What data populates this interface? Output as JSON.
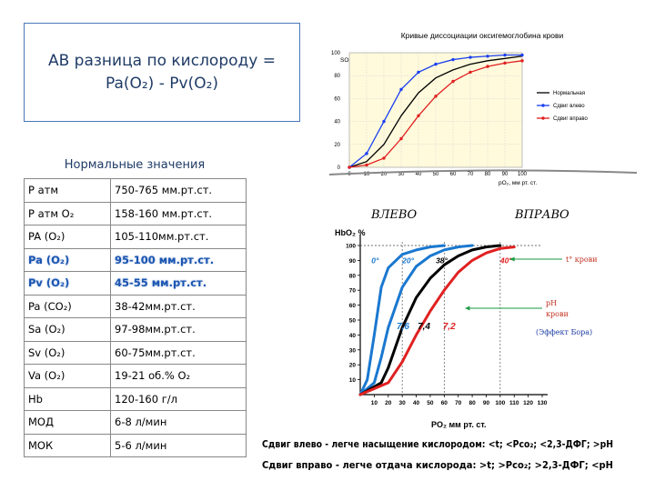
{
  "slide": {
    "title_line1": "АВ разница по кислороду =",
    "title_line2": "Pa(O₂) - Pv(O₂)"
  },
  "normals": {
    "heading": "Нормальные значения",
    "rows": [
      {
        "param": "P атм",
        "value": "750-765  мм.рт.ст.",
        "highlight": false
      },
      {
        "param": "P атм O₂",
        "value": "158-160 мм.рт.ст.",
        "highlight": false
      },
      {
        "param": "PA (O₂)",
        "value": "105-110мм.рт.ст.",
        "highlight": false
      },
      {
        "param": "Pa (O₂)",
        "value": "95-100 мм.рт.ст.",
        "highlight": true
      },
      {
        "param": "Pv (O₂)",
        "value": "45-55 мм.рт.ст.",
        "highlight": true
      },
      {
        "param": "Pa (CO₂)",
        "value": "38-42мм.рт.ст.",
        "highlight": false
      },
      {
        "param": "Sa (O₂)",
        "value": "97-98мм.рт.ст.",
        "highlight": false
      },
      {
        "param": "Sv (O₂)",
        "value": "60-75мм.рт.ст.",
        "highlight": false
      },
      {
        "param": "Va (O₂)",
        "value": "19-21 об.% O₂",
        "highlight": false
      },
      {
        "param": "Hb",
        "value": "120-160 г/л",
        "highlight": false
      },
      {
        "param": "МОД",
        "value": "6-8 л/мин",
        "highlight": false
      },
      {
        "param": "МОК",
        "value": "5-6 л/мин",
        "highlight": false
      }
    ]
  },
  "chart_data": [
    {
      "type": "line",
      "title": "Кривые диссоциации оксигемоглобина крови",
      "xlabel": "pO₂, мм рт. ст.",
      "ylabel": "SO₂, %",
      "xlim": [
        0,
        100
      ],
      "ylim": [
        0,
        100
      ],
      "x_ticks": [
        "0",
        "10",
        "20",
        "30",
        "40",
        "50",
        "60",
        "70",
        "80",
        "90",
        "100"
      ],
      "y_ticks": [
        "0",
        "20",
        "40",
        "60",
        "80",
        "100"
      ],
      "grid": true,
      "background": "#fffadc",
      "legend_position": "right",
      "series": [
        {
          "name": "Нормальная",
          "color": "#000000",
          "x": [
            0,
            10,
            20,
            30,
            40,
            50,
            60,
            70,
            80,
            90,
            100
          ],
          "y": [
            0,
            5,
            20,
            45,
            65,
            78,
            85,
            90,
            93,
            95,
            97
          ]
        },
        {
          "name": "Сдвиг влево",
          "color": "#1a3ff0",
          "x": [
            0,
            10,
            20,
            30,
            40,
            50,
            60,
            70,
            80,
            90,
            100
          ],
          "y": [
            0,
            12,
            40,
            68,
            83,
            90,
            94,
            96,
            97,
            98,
            98
          ]
        },
        {
          "name": "Сдвиг вправо",
          "color": "#e02020",
          "x": [
            0,
            10,
            20,
            30,
            40,
            50,
            60,
            70,
            80,
            90,
            100
          ],
          "y": [
            0,
            2,
            8,
            25,
            45,
            62,
            75,
            83,
            88,
            91,
            93
          ]
        }
      ]
    },
    {
      "type": "line",
      "xlabel": "PO₂  мм рт. ст.",
      "ylabel": "HbO₂  %",
      "xlim": [
        0,
        130
      ],
      "ylim": [
        0,
        100
      ],
      "x_ticks": [
        "10",
        "20",
        "30",
        "40",
        "50",
        "60",
        "70",
        "80",
        "90",
        "100",
        "110",
        "120",
        "130"
      ],
      "y_ticks": [
        "10",
        "20",
        "30",
        "40",
        "50",
        "60",
        "70",
        "80",
        "90",
        "100"
      ],
      "grid": false,
      "heading_left": "ВЛЕВО",
      "heading_right": "ВПРАВО",
      "series": [
        {
          "name": "",
          "color": "#1a78d0",
          "x": [
            0,
            5,
            10,
            15,
            20,
            30,
            40,
            50,
            60
          ],
          "y": [
            0,
            10,
            40,
            72,
            85,
            94,
            97,
            99,
            100
          ]
        },
        {
          "name": "",
          "color": "#1a78d0",
          "x": [
            0,
            10,
            15,
            20,
            30,
            40,
            50,
            60,
            70,
            80
          ],
          "y": [
            0,
            8,
            25,
            45,
            72,
            86,
            93,
            97,
            99,
            100
          ]
        },
        {
          "name": "",
          "color": "#000000",
          "x": [
            0,
            15,
            20,
            30,
            40,
            50,
            60,
            70,
            80,
            90,
            100
          ],
          "y": [
            0,
            8,
            18,
            45,
            65,
            78,
            87,
            93,
            97,
            99,
            100
          ]
        },
        {
          "name": "",
          "color": "#e02020",
          "x": [
            0,
            20,
            30,
            40,
            50,
            60,
            70,
            80,
            90,
            100,
            110
          ],
          "y": [
            0,
            8,
            22,
            40,
            56,
            70,
            82,
            90,
            95,
            98,
            99
          ]
        }
      ],
      "annotations": {
        "temps": [
          "0°",
          "20°",
          "38°",
          "40°"
        ],
        "ph": [
          "7,6",
          "7,4",
          "7,2"
        ],
        "temp_label": "t° крови",
        "ph_label_1": "pH",
        "ph_label_2": "крови",
        "bohr": "(Эффект Бора)"
      }
    }
  ],
  "footer": {
    "line1": "Сдвиг влево - легче насыщение кислородом: <t; <Pco₂; <2,3-ДФГ; >pH",
    "line2": "Сдвиг вправо - легче отдача кислорода: >t; >Pco₂; >2,3-ДФГ; <pH"
  }
}
